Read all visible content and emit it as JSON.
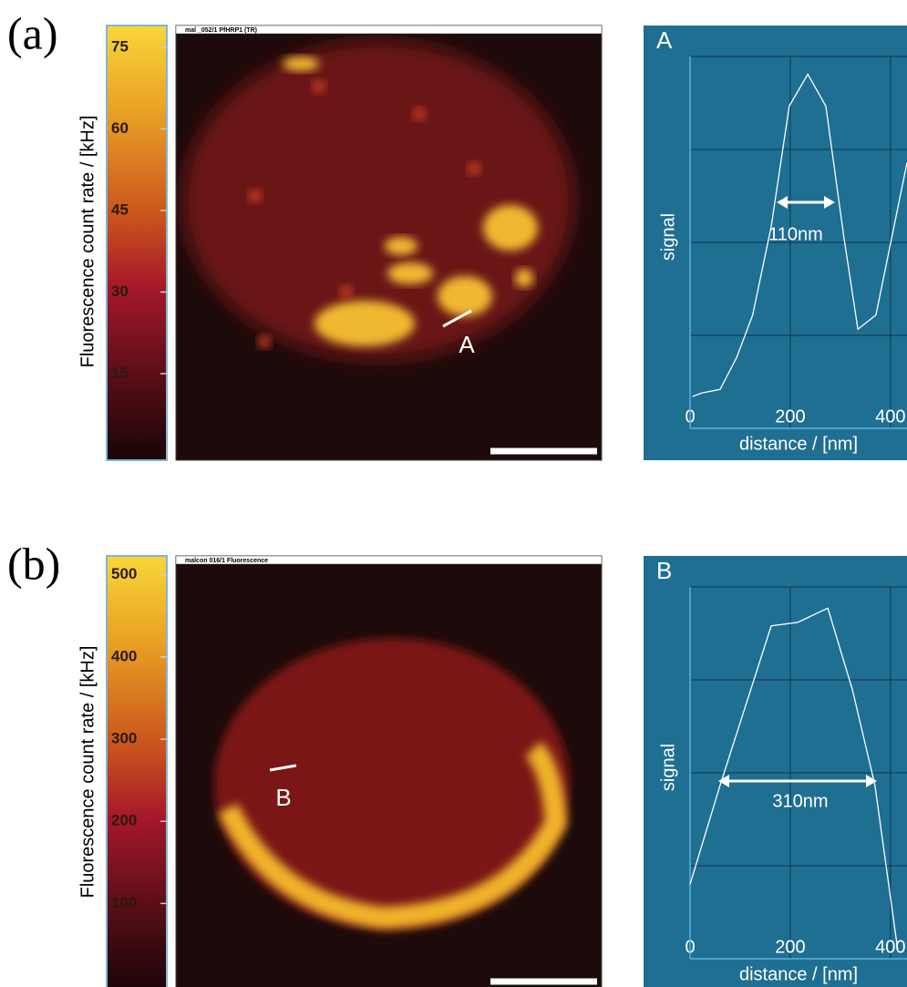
{
  "panels": [
    {
      "label": "(a)",
      "colorbar": {
        "label": "Fluorescence count rate / [kHz]",
        "ylim": [
          0,
          79
        ],
        "yticks": [
          15,
          30,
          45,
          60,
          75
        ]
      },
      "image": {
        "title": "mal _052/1 PfHRP1 (TR)",
        "marker": "A"
      }
    },
    {
      "label": "(b)",
      "colorbar": {
        "label": "Fluorescence count rate / [kHz]",
        "ylim": [
          0,
          523
        ],
        "yticks": [
          100,
          200,
          300,
          400,
          500
        ]
      },
      "image": {
        "title": "malcon 016/1 Fluorescence",
        "marker": "B"
      }
    }
  ],
  "chart_data": [
    {
      "type": "line",
      "title": "A",
      "xlabel": "distance / [nm]",
      "ylabel": "signal",
      "annotation": "110nm",
      "x": [
        5,
        24,
        60,
        93,
        125,
        162,
        198,
        235,
        271,
        307,
        335,
        371,
        433
      ],
      "series": [
        {
          "color": "#ffffff",
          "values": [
            0.09,
            0.1,
            0.11,
            0.2,
            0.32,
            0.57,
            0.91,
            1.0,
            0.91,
            0.54,
            0.28,
            0.32,
            0.75
          ]
        }
      ],
      "xlim": [
        0,
        433
      ],
      "xticks": [
        0,
        200,
        400
      ],
      "ylim": [
        0,
        1.05
      ],
      "grid": true,
      "background": "#1f6f92"
    },
    {
      "type": "line",
      "title": "B",
      "xlabel": "distance / [nm]",
      "ylabel": "signal",
      "annotation": "310nm",
      "x": [
        0,
        60,
        162,
        215,
        275,
        324,
        369,
        415
      ],
      "series": [
        {
          "color": "#ffffff",
          "values": [
            0.21,
            0.49,
            0.94,
            0.95,
            0.99,
            0.76,
            0.49,
            0.02
          ]
        }
      ],
      "xlim": [
        0,
        433
      ],
      "xticks": [
        0,
        200,
        400
      ],
      "ylim": [
        0,
        1.05
      ],
      "grid": true,
      "background": "#1f6f92"
    }
  ]
}
